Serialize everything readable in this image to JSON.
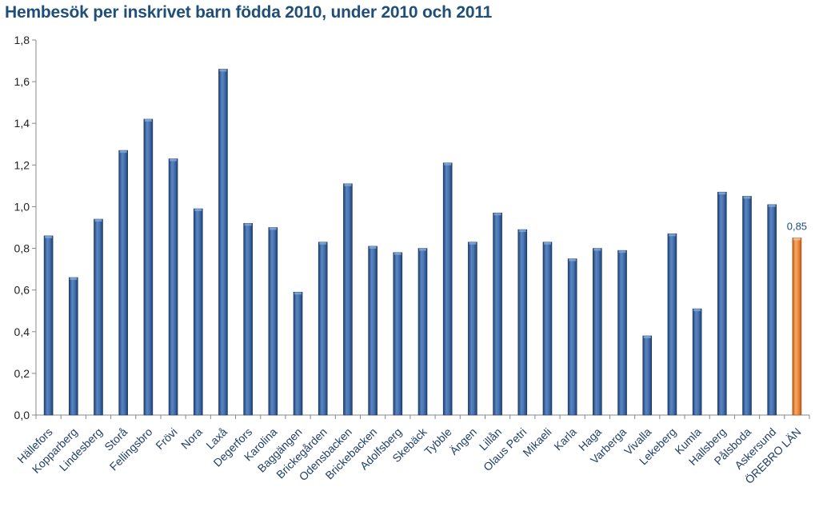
{
  "chart_data": {
    "type": "bar",
    "title": "Hembesök per inskrivet barn födda 2010, under 2010 och 2011",
    "xlabel": "",
    "ylabel": "",
    "ylim": [
      0,
      1.8
    ],
    "y_ticks": [
      "0,0",
      "0,2",
      "0,4",
      "0,6",
      "0,8",
      "1,0",
      "1,2",
      "1,4",
      "1,6",
      "1,8"
    ],
    "grid": false,
    "legend": "none",
    "categories": [
      "Hällefors",
      "Kopparberg",
      "Lindesberg",
      "Storå",
      "Fellingsbro",
      "Frövi",
      "Nora",
      "Laxå",
      "Degerfors",
      "Karolina",
      "Baggängen",
      "Brickegården",
      "Odensbacken",
      "Brickebacken",
      "Adolfsberg",
      "Skebäck",
      "Tybble",
      "Ängen",
      "Lillån",
      "Olaus Petri",
      "Mikaeli",
      "Karla",
      "Haga",
      "Varberga",
      "Vivalla",
      "Lekeberg",
      "Kumla",
      "Hallsberg",
      "Pålsboda",
      "Askersund",
      "ÖREBRO LÄN"
    ],
    "values": [
      0.86,
      0.66,
      0.94,
      1.27,
      1.42,
      1.23,
      0.99,
      1.66,
      0.92,
      0.9,
      0.59,
      0.83,
      1.11,
      0.81,
      0.78,
      0.8,
      1.21,
      0.83,
      0.97,
      0.89,
      0.83,
      0.75,
      0.8,
      0.79,
      0.38,
      0.87,
      0.51,
      1.07,
      1.05,
      1.01,
      0.85
    ],
    "highlight_index": 30,
    "data_labels": [
      {
        "index": 30,
        "text": "0,85"
      }
    ],
    "colors": {
      "bar": "#2f5a96",
      "bar_highlight": "#e8853a",
      "axis": "#888888",
      "title": "#1f4e79"
    }
  }
}
